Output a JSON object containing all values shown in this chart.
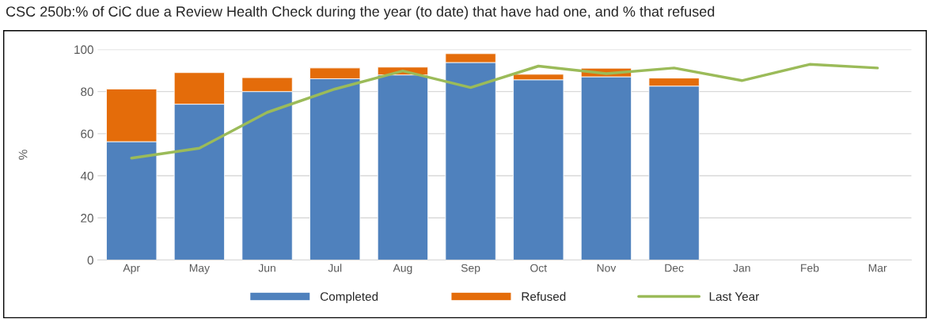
{
  "chart_data": {
    "type": "bar",
    "title": "CSC 250b:% of CiC due a Review Health Check during the year (to date) that have had one, and % that refused",
    "ylabel": "%",
    "categories": [
      "Apr",
      "May",
      "Jun",
      "Jul",
      "Aug",
      "Sep",
      "Oct",
      "Nov",
      "Dec",
      "Jan",
      "Feb",
      "Mar"
    ],
    "stacked": true,
    "series": [
      {
        "name": "Completed",
        "color": "#4f81bd",
        "values": [
          56.2,
          74,
          80,
          86.1,
          87.9,
          93.8,
          85.6,
          87,
          82.6,
          null,
          null,
          null
        ]
      },
      {
        "name": "Refused",
        "color": "#e46c0a",
        "values": [
          25,
          15,
          6.6,
          5.1,
          3.7,
          4.2,
          2.6,
          4.1,
          3.8,
          null,
          null,
          null
        ]
      },
      {
        "name": "Last Year",
        "type": "line",
        "color": "#9bbb59",
        "values": [
          48.4,
          53.1,
          70.1,
          81.2,
          89.8,
          81.9,
          92.1,
          88.5,
          91.2,
          85.2,
          92.9,
          91.2
        ]
      }
    ],
    "ylim": [
      0,
      100
    ],
    "yticks": [
      0,
      20,
      40,
      60,
      80,
      100
    ],
    "grid": "y",
    "legend": "bottom",
    "marker": "none",
    "line_style": "solid"
  }
}
